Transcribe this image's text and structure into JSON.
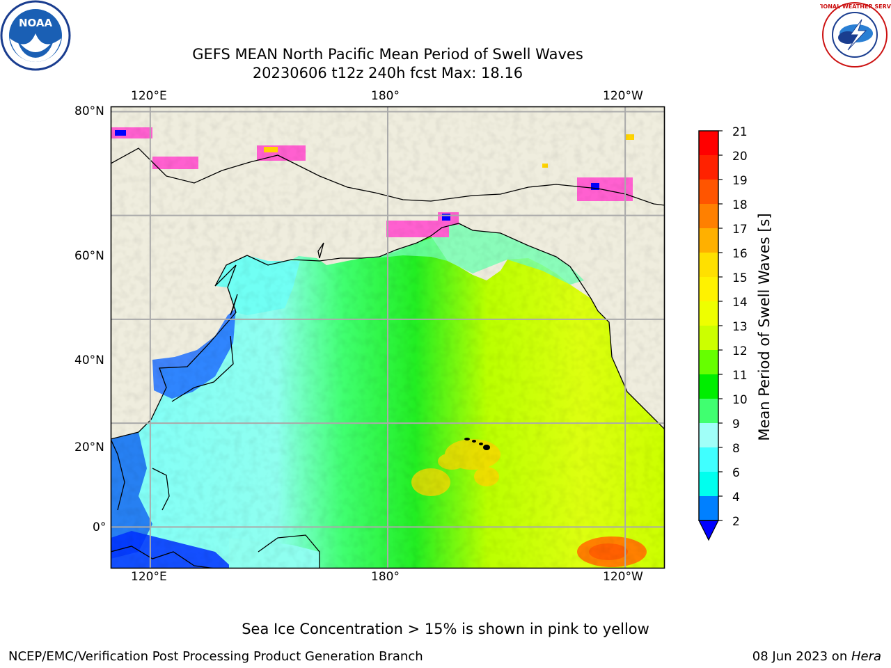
{
  "title": {
    "line1": "GEFS MEAN North Pacific Mean Period of Swell Waves",
    "line2": "20230606 t12z 240h fcst   Max: 18.16"
  },
  "map": {
    "projection": "equirectangular",
    "lon_range": [
      110,
      250
    ],
    "lat_range": [
      -8,
      81
    ],
    "lon_ticks": [
      {
        "lon": 120,
        "label": "120°E"
      },
      {
        "lon": 180,
        "label": "180°"
      },
      {
        "lon": 240,
        "label": "120°W"
      }
    ],
    "lat_ticks": [
      {
        "lat": 80,
        "label": "80°N"
      },
      {
        "lat": 60,
        "label": "60°N"
      },
      {
        "lat": 40,
        "label": "40°N"
      },
      {
        "lat": 20,
        "label": "20°N"
      },
      {
        "lat": 0,
        "label": "0°"
      }
    ],
    "gridlines": true,
    "land_color": "#efedde",
    "ocean_color": "#7dff9a"
  },
  "colorbar": {
    "label": "Mean Period of Swell Waves [s]",
    "ticks": [
      "21",
      "20",
      "19",
      "18",
      "17",
      "16",
      "15",
      "14",
      "13",
      "12",
      "11",
      "10",
      "9",
      "8",
      "6",
      "4",
      "2"
    ],
    "colors": [
      "#ff0000",
      "#ff2200",
      "#ff5500",
      "#ff8000",
      "#ffb000",
      "#ffe000",
      "#fff200",
      "#eeff00",
      "#ccff00",
      "#66ff00",
      "#00ee00",
      "#40ff70",
      "#a0fff8",
      "#40ffff",
      "#00ffee",
      "#0080ff"
    ],
    "extend_color": "#0000ff"
  },
  "notes": {
    "sea_ice": "Sea Ice Concentration > 15% is shown in pink to yellow",
    "credit": "NCEP/EMC/Verification Post Processing Product Generation Branch",
    "date": "08 Jun 2023 on ",
    "machine": "Hera"
  },
  "logos": {
    "noaa": "NOAA",
    "nws": "NATIONAL WEATHER SERVICE"
  }
}
